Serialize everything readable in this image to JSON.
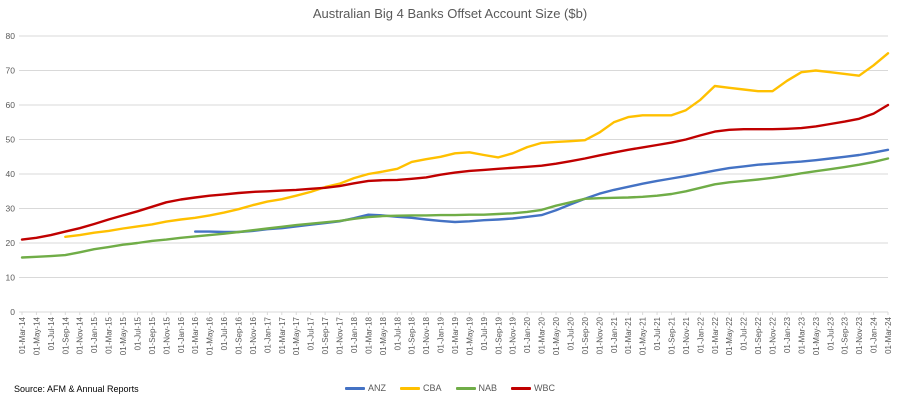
{
  "title": "Australian Big 4 Banks Offset Account Size ($b)",
  "source_note": "Source: AFM & Annual Reports",
  "colors": {
    "anz": "#4472C4",
    "cba": "#FFC000",
    "nab": "#70AD47",
    "wbc": "#C00000",
    "grid": "#D9D9D9",
    "axis_text": "#595959",
    "title_text": "#595959"
  },
  "chart_data": {
    "type": "line",
    "title": "Australian Big 4 Banks Offset Account Size ($b)",
    "xlabel": "",
    "ylabel": "",
    "ylim": [
      0,
      80
    ],
    "yticks": [
      0,
      10,
      20,
      30,
      40,
      50,
      60,
      70,
      80
    ],
    "grid": true,
    "legend_position": "bottom",
    "x": [
      "01-Mar-14",
      "01-May-14",
      "01-Jul-14",
      "01-Sep-14",
      "01-Nov-14",
      "01-Jan-15",
      "01-Mar-15",
      "01-May-15",
      "01-Jul-15",
      "01-Sep-15",
      "01-Nov-15",
      "01-Jan-16",
      "01-Mar-16",
      "01-May-16",
      "01-Jul-16",
      "01-Sep-16",
      "01-Nov-16",
      "01-Jan-17",
      "01-Mar-17",
      "01-May-17",
      "01-Jul-17",
      "01-Sep-17",
      "01-Nov-17",
      "01-Jan-18",
      "01-Mar-18",
      "01-May-18",
      "01-Jul-18",
      "01-Sep-18",
      "01-Nov-18",
      "01-Jan-19",
      "01-Mar-19",
      "01-May-19",
      "01-Jul-19",
      "01-Sep-19",
      "01-Nov-19",
      "01-Jan-20",
      "01-Mar-20",
      "01-May-20",
      "01-Jul-20",
      "01-Sep-20",
      "01-Nov-20",
      "01-Jan-21",
      "01-Mar-21",
      "01-May-21",
      "01-Jul-21",
      "01-Sep-21",
      "01-Nov-21",
      "01-Jan-22",
      "01-Mar-22",
      "01-May-22",
      "01-Jul-22",
      "01-Sep-22",
      "01-Nov-22",
      "01-Jan-23",
      "01-Mar-23",
      "01-May-23",
      "01-Jul-23",
      "01-Sep-23",
      "01-Nov-23",
      "01-Jan-24",
      "01-Mar-24"
    ],
    "series": [
      {
        "name": "ANZ",
        "color": "#4472C4",
        "values": [
          null,
          null,
          null,
          null,
          null,
          null,
          null,
          null,
          null,
          null,
          null,
          null,
          23.3,
          23.3,
          23.2,
          23.2,
          23.5,
          24,
          24.3,
          24.8,
          25.3,
          25.8,
          26.3,
          27.2,
          28.2,
          28,
          27.6,
          27.3,
          26.8,
          26.4,
          26.1,
          26.3,
          26.6,
          26.8,
          27.1,
          27.6,
          28.1,
          29.5,
          31.2,
          32.8,
          34.3,
          35.4,
          36.3,
          37.2,
          38,
          38.7,
          39.4,
          40.2,
          41,
          41.7,
          42.2,
          42.7,
          43,
          43.3,
          43.6,
          44,
          44.5,
          45,
          45.5,
          46.2,
          47
        ]
      },
      {
        "name": "CBA",
        "color": "#FFC000",
        "values": [
          null,
          null,
          null,
          21.8,
          22.3,
          23,
          23.5,
          24.2,
          24.8,
          25.4,
          26.2,
          26.8,
          27.3,
          28,
          28.8,
          29.8,
          31,
          32,
          32.7,
          33.7,
          34.8,
          36.2,
          37.2,
          38.8,
          40,
          40.7,
          41.5,
          43.5,
          44.3,
          45,
          46,
          46.3,
          45.5,
          44.8,
          46,
          47.8,
          49,
          49.3,
          49.5,
          49.8,
          52,
          55,
          56.5,
          57,
          57,
          57,
          58.5,
          61.5,
          65.5,
          65,
          64.5,
          64,
          64,
          67,
          69.5,
          70,
          69.5,
          69,
          68.5,
          71.5,
          75
        ]
      },
      {
        "name": "NAB",
        "color": "#70AD47",
        "values": [
          15.8,
          16,
          16.2,
          16.5,
          17.3,
          18.2,
          18.8,
          19.5,
          20,
          20.6,
          21,
          21.5,
          21.9,
          22.3,
          22.7,
          23.2,
          23.7,
          24.2,
          24.7,
          25.2,
          25.6,
          26,
          26.4,
          27,
          27.5,
          27.8,
          27.9,
          28,
          28,
          28.1,
          28.1,
          28.2,
          28.2,
          28.4,
          28.6,
          29,
          29.6,
          30.8,
          31.8,
          32.8,
          33,
          33.1,
          33.2,
          33.4,
          33.7,
          34.2,
          35,
          36,
          37,
          37.6,
          38,
          38.4,
          38.9,
          39.5,
          40.2,
          40.8,
          41.4,
          42,
          42.7,
          43.5,
          44.5
        ]
      },
      {
        "name": "WBC",
        "color": "#C00000",
        "values": [
          21,
          21.5,
          22.3,
          23.3,
          24.3,
          25.5,
          26.8,
          28,
          29.2,
          30.5,
          31.8,
          32.6,
          33.2,
          33.7,
          34.1,
          34.5,
          34.8,
          35,
          35.2,
          35.4,
          35.7,
          36,
          36.5,
          37.3,
          38,
          38.2,
          38.3,
          38.6,
          39,
          39.8,
          40.4,
          40.9,
          41.2,
          41.5,
          41.8,
          42.1,
          42.4,
          43,
          43.7,
          44.5,
          45.4,
          46.2,
          47,
          47.7,
          48.4,
          49.1,
          50,
          51.2,
          52.3,
          52.8,
          53,
          53,
          53,
          53.1,
          53.3,
          53.8,
          54.5,
          55.2,
          56,
          57.5,
          60
        ]
      }
    ]
  }
}
